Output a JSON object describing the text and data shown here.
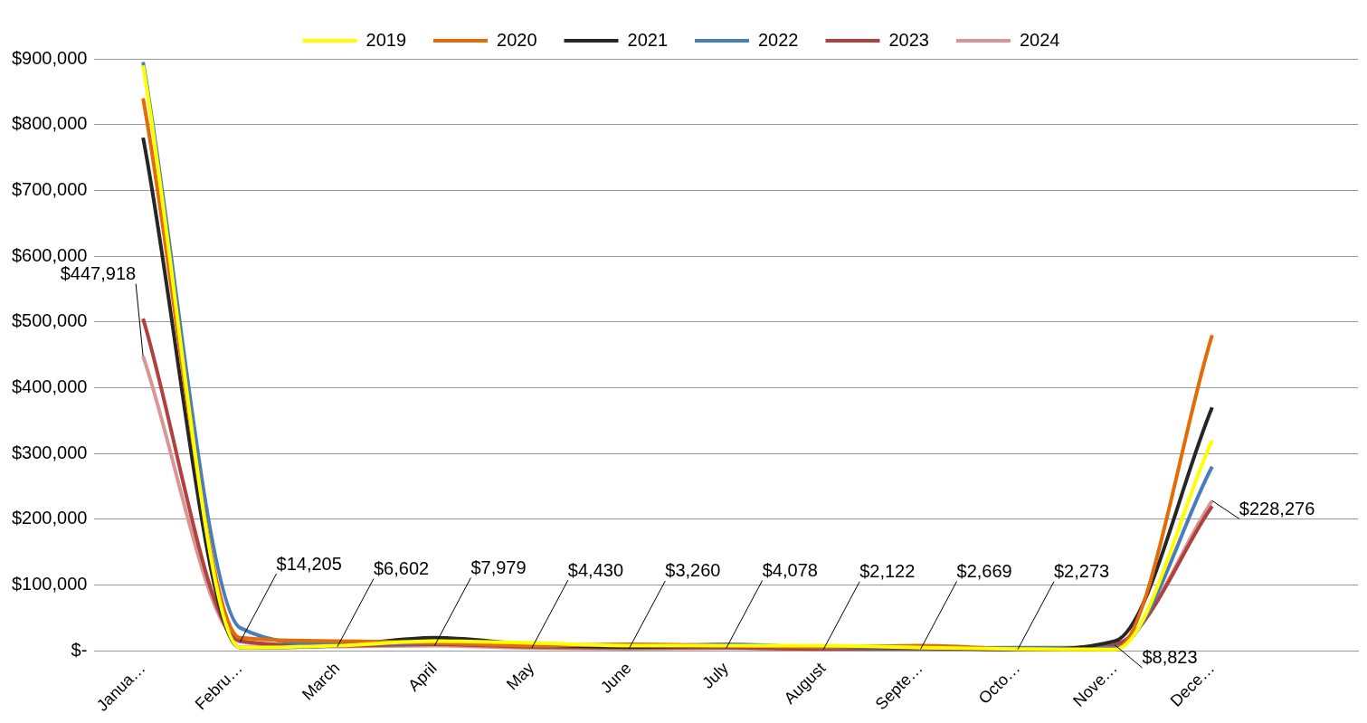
{
  "chart_data": {
    "type": "line",
    "categories": [
      "Janua…",
      "Febru…",
      "March",
      "April",
      "May",
      "June",
      "July",
      "August",
      "Septe…",
      "Octo…",
      "Nove…",
      "Dece…",
      null
    ],
    "series": [
      {
        "name": "2019",
        "color": "#ffff00",
        "values": [
          890000,
          5000,
          8000,
          15000,
          12000,
          8000,
          8000,
          8000,
          5000,
          3000,
          2000,
          320000,
          null
        ]
      },
      {
        "name": "2020",
        "color": "#e36c09",
        "values": [
          840000,
          20000,
          15000,
          12000,
          8000,
          10000,
          8000,
          6000,
          8000,
          3000,
          2000,
          480000,
          null
        ]
      },
      {
        "name": "2021",
        "color": "#262626",
        "values": [
          780000,
          5000,
          8000,
          20000,
          10000,
          6000,
          8000,
          6000,
          5000,
          2000,
          15000,
          370000,
          null
        ]
      },
      {
        "name": "2022",
        "color": "#4a7ebb",
        "values": [
          895000,
          35000,
          10000,
          12000,
          8000,
          7000,
          10000,
          5000,
          4000,
          5000,
          5000,
          280000,
          null
        ]
      },
      {
        "name": "2023",
        "color": "#b0413e",
        "values": [
          505000,
          15000,
          8000,
          10000,
          6000,
          5000,
          5000,
          3000,
          3000,
          3000,
          10000,
          220000,
          null
        ]
      },
      {
        "name": "2024",
        "color": "#d99694",
        "values": [
          447918,
          14205,
          6602,
          7979,
          4430,
          3260,
          4078,
          2122,
          2669,
          2273,
          8823,
          228276,
          null
        ],
        "value_labels": [
          "$447,918",
          "$14,205",
          "$6,602",
          "$7,979",
          "$4,430",
          "$3,260",
          "$4,078",
          "$2,122",
          "$2,669",
          "$2,273",
          "$8,823",
          "$228,276",
          null
        ]
      }
    ],
    "ylim": [
      0,
      900000
    ],
    "yticks": [
      {
        "value": 0,
        "label": "$-"
      },
      {
        "value": 100000,
        "label": "$100,000"
      },
      {
        "value": 200000,
        "label": "$200,000"
      },
      {
        "value": 300000,
        "label": "$300,000"
      },
      {
        "value": 400000,
        "label": "$400,000"
      },
      {
        "value": 500000,
        "label": "$500,000"
      },
      {
        "value": 600000,
        "label": "$600,000"
      },
      {
        "value": 700000,
        "label": "$700,000"
      },
      {
        "value": 800000,
        "label": "$800,000"
      },
      {
        "value": 900000,
        "label": "$900,000"
      }
    ],
    "grid": "y",
    "legend": "top",
    "marker": "none",
    "line_style": "solid"
  }
}
